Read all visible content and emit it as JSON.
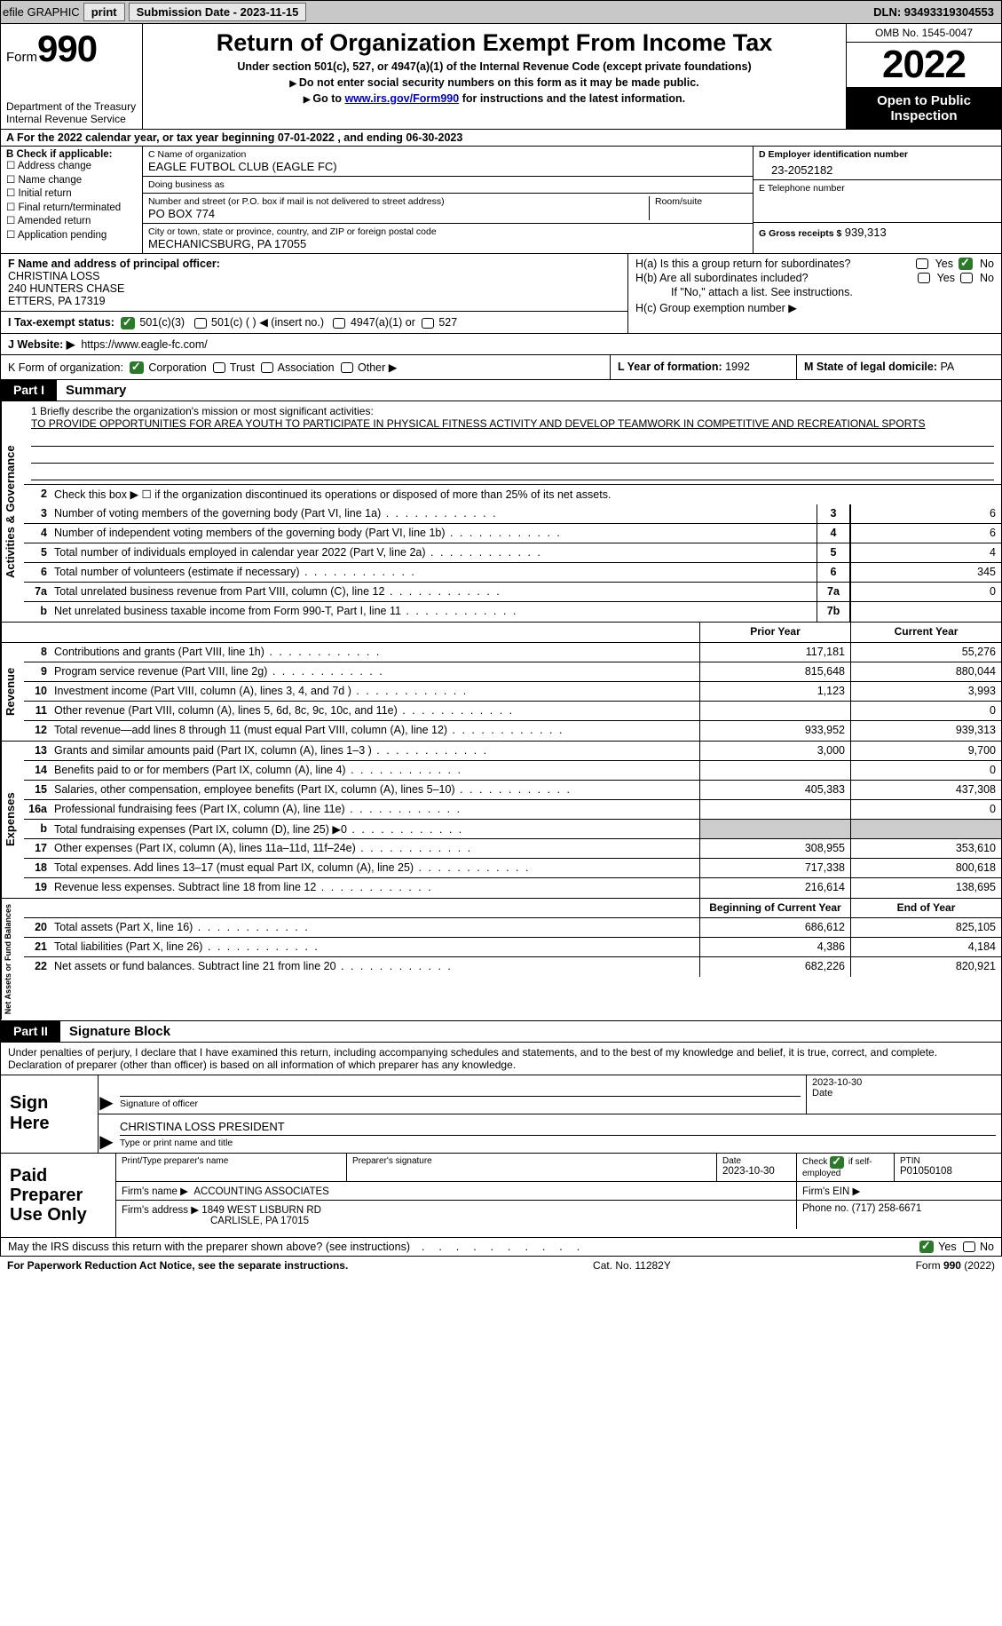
{
  "colors": {
    "topbar_bg": "#c8c8c8",
    "black": "#000000",
    "link": "#0000cc",
    "check_green": "#2a7a2a",
    "greyfill": "#cccccc"
  },
  "topbar": {
    "efile": "efile GRAPHIC",
    "print": "print",
    "sub_label": "Submission Date - 2023-11-15",
    "dln": "DLN: 93493319304553"
  },
  "header": {
    "form_prefix": "Form",
    "form_no": "990",
    "dept": "Department of the Treasury",
    "irs": "Internal Revenue Service",
    "title": "Return of Organization Exempt From Income Tax",
    "subtitle": "Under section 501(c), 527, or 4947(a)(1) of the Internal Revenue Code (except private foundations)",
    "note1": "Do not enter social security numbers on this form as it may be made public.",
    "note2_pre": "Go to ",
    "note2_link": "www.irs.gov/Form990",
    "note2_post": " for instructions and the latest information.",
    "omb": "OMB No. 1545-0047",
    "year": "2022",
    "otp": "Open to Public Inspection"
  },
  "A": {
    "text": "A For the 2022 calendar year, or tax year beginning 07-01-2022   , and ending 06-30-2023"
  },
  "B": {
    "label": "B Check if applicable:",
    "opts": [
      "Address change",
      "Name change",
      "Initial return",
      "Final return/terminated",
      "Amended return",
      "Application pending"
    ]
  },
  "C": {
    "name_lbl": "C Name of organization",
    "name": "EAGLE FUTBOL CLUB (EAGLE FC)",
    "dba_lbl": "Doing business as",
    "dba": "",
    "addr_lbl": "Number and street (or P.O. box if mail is not delivered to street address)",
    "addr": "PO BOX 774",
    "room_lbl": "Room/suite",
    "city_lbl": "City or town, state or province, country, and ZIP or foreign postal code",
    "city": "MECHANICSBURG, PA  17055"
  },
  "D": {
    "ein_lbl": "D Employer identification number",
    "ein": "23-2052182",
    "tel_lbl": "E Telephone number",
    "tel": "",
    "gross_lbl": "G Gross receipts $",
    "gross": "939,313"
  },
  "F": {
    "label": "F  Name and address of principal officer:",
    "name": "CHRISTINA LOSS",
    "addr1": "240 HUNTERS CHASE",
    "addr2": "ETTERS, PA  17319"
  },
  "H": {
    "a": "H(a)  Is this a group return for subordinates?",
    "b": "H(b)  Are all subordinates included?",
    "b_note": "If \"No,\" attach a list. See instructions.",
    "c": "H(c)  Group exemption number ▶",
    "yes": "Yes",
    "no": "No"
  },
  "I": {
    "label": "I   Tax-exempt status:",
    "o1": "501(c)(3)",
    "o2": "501(c) (  ) ◀ (insert no.)",
    "o3": "4947(a)(1) or",
    "o4": "527"
  },
  "J": {
    "label": "J   Website: ▶",
    "url": "https://www.eagle-fc.com/"
  },
  "K": {
    "label": "K Form of organization:",
    "o1": "Corporation",
    "o2": "Trust",
    "o3": "Association",
    "o4": "Other ▶"
  },
  "L": {
    "label": "L Year of formation:",
    "val": "1992"
  },
  "M": {
    "label": "M State of legal domicile:",
    "val": "PA"
  },
  "partI": {
    "tag": "Part I",
    "title": "Summary"
  },
  "summary": {
    "sec1_label": "Activities & Governance",
    "mission_lbl": "1   Briefly describe the organization's mission or most significant activities:",
    "mission": "TO PROVIDE OPPORTUNITIES FOR AREA YOUTH TO PARTICIPATE IN PHYSICAL FITNESS ACTIVITY AND DEVELOP TEAMWORK IN COMPETITIVE AND RECREATIONAL SPORTS",
    "l2": "Check this box ▶ ☐  if the organization discontinued its operations or disposed of more than 25% of its net assets.",
    "rows_gov": [
      {
        "n": "3",
        "d": "Number of voting members of the governing body (Part VI, line 1a)",
        "ln": "3",
        "v": "6"
      },
      {
        "n": "4",
        "d": "Number of independent voting members of the governing body (Part VI, line 1b)",
        "ln": "4",
        "v": "6"
      },
      {
        "n": "5",
        "d": "Total number of individuals employed in calendar year 2022 (Part V, line 2a)",
        "ln": "5",
        "v": "4"
      },
      {
        "n": "6",
        "d": "Total number of volunteers (estimate if necessary)",
        "ln": "6",
        "v": "345"
      },
      {
        "n": "7a",
        "d": "Total unrelated business revenue from Part VIII, column (C), line 12",
        "ln": "7a",
        "v": "0"
      },
      {
        "n": "b",
        "d": "Net unrelated business taxable income from Form 990-T, Part I, line 11",
        "ln": "7b",
        "v": ""
      }
    ],
    "prior_hdr": "Prior Year",
    "curr_hdr": "Current Year",
    "sec_rev": "Revenue",
    "rows_rev": [
      {
        "n": "8",
        "d": "Contributions and grants (Part VIII, line 1h)",
        "py": "117,181",
        "cy": "55,276"
      },
      {
        "n": "9",
        "d": "Program service revenue (Part VIII, line 2g)",
        "py": "815,648",
        "cy": "880,044"
      },
      {
        "n": "10",
        "d": "Investment income (Part VIII, column (A), lines 3, 4, and 7d )",
        "py": "1,123",
        "cy": "3,993"
      },
      {
        "n": "11",
        "d": "Other revenue (Part VIII, column (A), lines 5, 6d, 8c, 9c, 10c, and 11e)",
        "py": "",
        "cy": "0"
      },
      {
        "n": "12",
        "d": "Total revenue—add lines 8 through 11 (must equal Part VIII, column (A), line 12)",
        "py": "933,952",
        "cy": "939,313"
      }
    ],
    "sec_exp": "Expenses",
    "rows_exp": [
      {
        "n": "13",
        "d": "Grants and similar amounts paid (Part IX, column (A), lines 1–3 )",
        "py": "3,000",
        "cy": "9,700"
      },
      {
        "n": "14",
        "d": "Benefits paid to or for members (Part IX, column (A), line 4)",
        "py": "",
        "cy": "0"
      },
      {
        "n": "15",
        "d": "Salaries, other compensation, employee benefits (Part IX, column (A), lines 5–10)",
        "py": "405,383",
        "cy": "437,308"
      },
      {
        "n": "16a",
        "d": "Professional fundraising fees (Part IX, column (A), line 11e)",
        "py": "",
        "cy": "0"
      },
      {
        "n": "b",
        "d": "Total fundraising expenses (Part IX, column (D), line 25) ▶0",
        "py": "GREY",
        "cy": "GREY"
      },
      {
        "n": "17",
        "d": "Other expenses (Part IX, column (A), lines 11a–11d, 11f–24e)",
        "py": "308,955",
        "cy": "353,610"
      },
      {
        "n": "18",
        "d": "Total expenses. Add lines 13–17 (must equal Part IX, column (A), line 25)",
        "py": "717,338",
        "cy": "800,618"
      },
      {
        "n": "19",
        "d": "Revenue less expenses. Subtract line 18 from line 12",
        "py": "216,614",
        "cy": "138,695"
      }
    ],
    "sec_net": "Net Assets or Fund Balances",
    "boy_hdr": "Beginning of Current Year",
    "eoy_hdr": "End of Year",
    "rows_net": [
      {
        "n": "20",
        "d": "Total assets (Part X, line 16)",
        "py": "686,612",
        "cy": "825,105"
      },
      {
        "n": "21",
        "d": "Total liabilities (Part X, line 26)",
        "py": "4,386",
        "cy": "4,184"
      },
      {
        "n": "22",
        "d": "Net assets or fund balances. Subtract line 21 from line 20",
        "py": "682,226",
        "cy": "820,921"
      }
    ]
  },
  "partII": {
    "tag": "Part II",
    "title": "Signature Block"
  },
  "sig": {
    "para": "Under penalties of perjury, I declare that I have examined this return, including accompanying schedules and statements, and to the best of my knowledge and belief, it is true, correct, and complete. Declaration of preparer (other than officer) is based on all information of which preparer has any knowledge.",
    "here": "Sign Here",
    "officer_sig_lbl": "Signature of officer",
    "officer_date": "2023-10-30",
    "date_lbl": "Date",
    "officer_name": "CHRISTINA LOSS  PRESIDENT",
    "officer_name_lbl": "Type or print name and title"
  },
  "prep": {
    "label": "Paid Preparer Use Only",
    "name_lbl": "Print/Type preparer's name",
    "sig_lbl": "Preparer's signature",
    "date_lbl": "Date",
    "date": "2023-10-30",
    "check_lbl": "Check ☑ if self-employed",
    "ptin_lbl": "PTIN",
    "ptin": "P01050108",
    "firm_name_lbl": "Firm's name   ▶",
    "firm_name": "ACCOUNTING ASSOCIATES",
    "firm_ein_lbl": "Firm's EIN ▶",
    "firm_addr_lbl": "Firm's address ▶",
    "firm_addr1": "1849 WEST LISBURN RD",
    "firm_addr2": "CARLISLE, PA  17015",
    "phone_lbl": "Phone no.",
    "phone": "(717) 258-6671"
  },
  "may": {
    "q": "May the IRS discuss this return with the preparer shown above? (see instructions)",
    "yes": "Yes",
    "no": "No"
  },
  "footer": {
    "l": "For Paperwork Reduction Act Notice, see the separate instructions.",
    "c": "Cat. No. 11282Y",
    "r": "Form 990 (2022)"
  }
}
